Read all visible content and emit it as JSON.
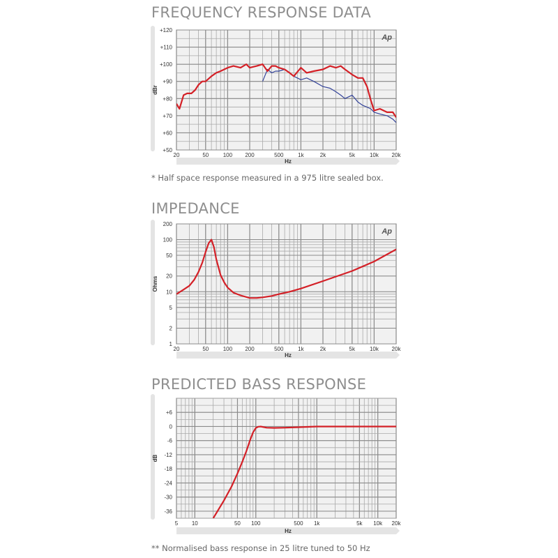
{
  "colors": {
    "measured": "#d42027",
    "secondary": "#34449a",
    "grid": "#a9a9a9",
    "plot_bg": "#f1f1f1",
    "bar": "#e4e4e4"
  },
  "chart_data": [
    {
      "type": "line",
      "title": "FREQUENCY RESPONSE DATA",
      "xlabel": "Hz",
      "ylabel": "dBr",
      "x_scale": "log",
      "xlim": [
        20,
        20000
      ],
      "ylim": [
        50,
        120
      ],
      "x_ticks": [
        20,
        50,
        100,
        200,
        500,
        1000,
        2000,
        5000,
        10000,
        20000
      ],
      "x_tick_labels": [
        "20",
        "50",
        "100",
        "200",
        "500",
        "1k",
        "2k",
        "5k",
        "10k",
        "20k"
      ],
      "y_ticks": [
        50,
        60,
        70,
        80,
        90,
        100,
        110,
        120
      ],
      "y_tick_labels": [
        "+50",
        "+60",
        "+70",
        "+80",
        "+90",
        "+100",
        "+110",
        "+120"
      ],
      "grid": true,
      "logo": "Ap",
      "series": [
        {
          "color": "#d42027",
          "x": [
            20,
            22,
            25,
            28,
            32,
            36,
            40,
            45,
            50,
            60,
            70,
            80,
            100,
            120,
            150,
            180,
            200,
            250,
            300,
            350,
            400,
            450,
            500,
            600,
            700,
            800,
            1000,
            1200,
            1500,
            2000,
            2500,
            3000,
            3500,
            4000,
            5000,
            6000,
            7000,
            8000,
            9000,
            10000,
            12000,
            15000,
            18000,
            20000
          ],
          "y": [
            77,
            74,
            82,
            83,
            83,
            85,
            88,
            90,
            90,
            93,
            95,
            96,
            98,
            99,
            98,
            100,
            98,
            99,
            100,
            96,
            99,
            99,
            98,
            97,
            95,
            93,
            98,
            95,
            96,
            97,
            99,
            98,
            99,
            97,
            94,
            92,
            92,
            87,
            79,
            73,
            74,
            72,
            72,
            69
          ]
        },
        {
          "color": "#34449a",
          "x": [
            300,
            350,
            400,
            450,
            500,
            600,
            700,
            800,
            1000,
            1200,
            1500,
            2000,
            2500,
            3000,
            3500,
            4000,
            5000,
            6000,
            7000,
            8000,
            9000,
            10000,
            12000,
            15000,
            18000,
            20000
          ],
          "y": [
            90,
            97,
            95,
            96,
            96,
            97,
            95,
            93,
            91,
            92,
            90,
            87,
            86,
            84,
            82,
            80,
            82,
            78,
            76,
            75,
            74,
            72,
            71,
            70,
            68,
            66
          ]
        }
      ],
      "note": "* Half space response measured in a 975 litre sealed box."
    },
    {
      "type": "line",
      "title": "IMPEDANCE",
      "xlabel": "Hz",
      "ylabel": "Ohms",
      "x_scale": "log",
      "y_scale": "log",
      "xlim": [
        20,
        20000
      ],
      "ylim": [
        1,
        200
      ],
      "x_ticks": [
        20,
        50,
        100,
        200,
        500,
        1000,
        2000,
        5000,
        10000,
        20000
      ],
      "x_tick_labels": [
        "20",
        "50",
        "100",
        "200",
        "500",
        "1k",
        "2k",
        "5k",
        "10k",
        "20k"
      ],
      "y_ticks": [
        1,
        2,
        5,
        10,
        20,
        50,
        100,
        200
      ],
      "y_tick_labels": [
        "1",
        "2",
        "5",
        "10",
        "20",
        "50",
        "100",
        "200"
      ],
      "grid": true,
      "logo": "Ap",
      "series": [
        {
          "color": "#d42027",
          "x": [
            20,
            25,
            30,
            35,
            40,
            45,
            50,
            55,
            60,
            65,
            70,
            80,
            90,
            100,
            120,
            150,
            200,
            250,
            300,
            400,
            500,
            700,
            1000,
            2000,
            5000,
            10000,
            20000
          ],
          "y": [
            9,
            11,
            13,
            17,
            24,
            36,
            58,
            85,
            100,
            72,
            42,
            21,
            15,
            12,
            9.6,
            8.5,
            7.6,
            7.6,
            7.8,
            8.3,
            9,
            10,
            11.5,
            16,
            25,
            38,
            65
          ]
        }
      ]
    },
    {
      "type": "line",
      "title": "PREDICTED BASS RESPONSE",
      "xlabel": "Hz",
      "ylabel": "dB",
      "x_scale": "log",
      "xlim": [
        5,
        20000
      ],
      "ylim": [
        -39,
        12
      ],
      "x_ticks": [
        5,
        10,
        50,
        100,
        500,
        1000,
        5000,
        10000,
        20000
      ],
      "x_tick_labels": [
        "5",
        "10",
        "50",
        "100",
        "500",
        "1k",
        "5k",
        "10k",
        "20k"
      ],
      "y_ticks": [
        6,
        0,
        -6,
        -12,
        -18,
        -24,
        -30,
        -36
      ],
      "y_tick_labels": [
        "+6",
        "0",
        "-6",
        "-12",
        "-18",
        "-24",
        "-30",
        "-36"
      ],
      "grid": true,
      "series": [
        {
          "color": "#d42027",
          "x": [
            20,
            30,
            40,
            50,
            60,
            70,
            80,
            90,
            100,
            110,
            120,
            150,
            200,
            300,
            500,
            1000,
            2000,
            5000,
            10000,
            20000
          ],
          "y": [
            -39,
            -31.5,
            -25.5,
            -20,
            -15,
            -10.5,
            -6,
            -2.5,
            -0.6,
            -0.1,
            0,
            -0.5,
            -0.6,
            -0.5,
            -0.3,
            0,
            0,
            0,
            0,
            0
          ]
        }
      ],
      "note": "** Normalised bass response in 25 litre tuned to 50 Hz"
    }
  ]
}
